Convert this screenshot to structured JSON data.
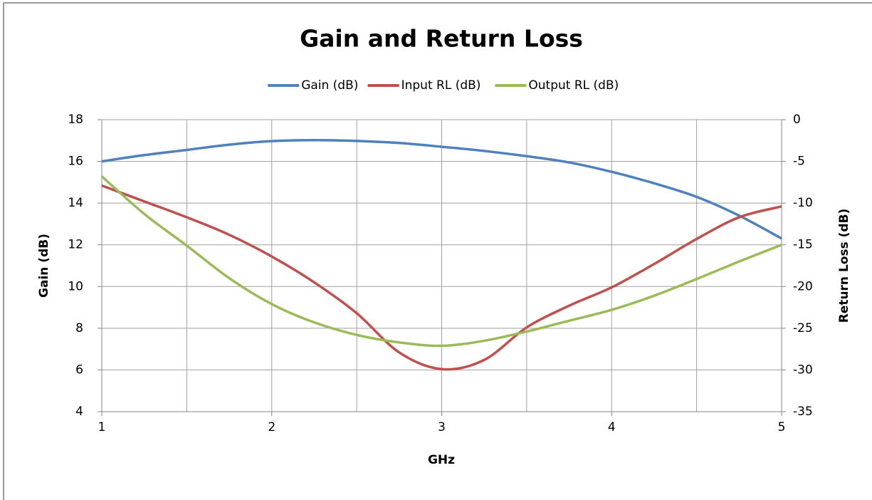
{
  "chart_data": {
    "type": "line",
    "title": "Gain and Return Loss",
    "x_label": "GHz",
    "y_label": "Gain (dB)",
    "y2_label": "Return Loss (dB)",
    "x": [
      1,
      1.25,
      1.5,
      1.75,
      2,
      2.25,
      2.5,
      2.75,
      3,
      3.25,
      3.5,
      3.75,
      4,
      4.25,
      4.5,
      4.75,
      5
    ],
    "series": [
      {
        "name": "Gain (dB)",
        "color": "#4f81bd",
        "values": [
          16.0,
          16.3,
          16.55,
          16.8,
          16.97,
          17.02,
          16.98,
          16.88,
          16.7,
          16.5,
          16.25,
          15.95,
          15.5,
          14.95,
          14.3,
          13.4,
          12.3
        ]
      },
      {
        "name": "Input RL (dB)",
        "color": "#c0504d",
        "axis": "y2",
        "values": [
          -7.9,
          -9.8,
          -11.7,
          -13.8,
          -16.4,
          -19.5,
          -23.2,
          -27.9,
          -29.9,
          -28.8,
          -24.9,
          -22.3,
          -20.1,
          -17.3,
          -14.3,
          -11.7,
          -10.4
        ]
      },
      {
        "name": "Output RL (dB)",
        "color": "#9bbb59",
        "axis": "y2",
        "values": [
          -6.8,
          -11.3,
          -15.1,
          -19.0,
          -22.1,
          -24.3,
          -25.8,
          -26.7,
          -27.1,
          -26.5,
          -25.4,
          -24.1,
          -22.8,
          -21.1,
          -19.1,
          -17.0,
          -15.0
        ]
      }
    ],
    "xlim": [
      1,
      5
    ],
    "xticks": [
      1,
      2,
      3,
      4,
      5
    ],
    "xminor": [
      1.5,
      2.5,
      3.5,
      4.5
    ],
    "ylim": [
      4,
      18
    ],
    "yticks": [
      4,
      6,
      8,
      10,
      12,
      14,
      16,
      18
    ],
    "y2lim": [
      -35,
      0
    ],
    "y2ticks": [
      -35,
      -30,
      -25,
      -20,
      -15,
      -10,
      -5,
      0
    ],
    "grid": true,
    "legend": "top"
  }
}
